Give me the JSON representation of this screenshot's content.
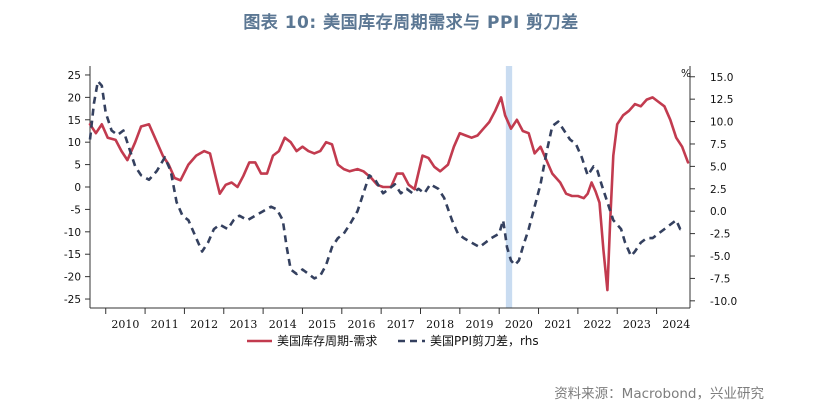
{
  "title": "图表 10: 美国库存周期需求与 PPI 剪刀差",
  "source": "资料来源：Macrobond，兴业研究",
  "chart_data": {
    "type": "line",
    "left_axis": {
      "ticks": [
        25,
        20,
        15,
        10,
        5,
        0,
        -5,
        -10,
        -15,
        -20,
        -25
      ],
      "range": [
        -27,
        27
      ]
    },
    "right_axis": {
      "unit": "%",
      "ticks": [
        "15.0",
        "12.5",
        "10.0",
        "7.5",
        "5.0",
        "2.5",
        "0.0",
        "-2.5",
        "-5.0",
        "-7.5",
        "-10.0"
      ],
      "range": [
        -10.8,
        16.2
      ]
    },
    "x_axis": {
      "labels": [
        "2010",
        "2011",
        "2012",
        "2013",
        "2014",
        "2015",
        "2016",
        "2017",
        "2018",
        "2019",
        "2020",
        "2021",
        "2022",
        "2023",
        "2024"
      ],
      "range": [
        2009.6,
        2024.85
      ]
    },
    "highlight": {
      "start": 2020.17,
      "end": 2020.33,
      "color": "#c9dcf1"
    },
    "series": [
      {
        "name": "美国库存周期-需求",
        "axis": "left",
        "color": "#c23b4f",
        "style": "solid",
        "points": [
          [
            2009.6,
            14
          ],
          [
            2009.75,
            12
          ],
          [
            2009.9,
            14
          ],
          [
            2010.05,
            11
          ],
          [
            2010.25,
            10.5
          ],
          [
            2010.4,
            8
          ],
          [
            2010.55,
            6
          ],
          [
            2010.75,
            10
          ],
          [
            2010.9,
            13.5
          ],
          [
            2011.1,
            14
          ],
          [
            2011.3,
            10
          ],
          [
            2011.45,
            7
          ],
          [
            2011.6,
            5
          ],
          [
            2011.75,
            2
          ],
          [
            2011.9,
            1.5
          ],
          [
            2012.1,
            5
          ],
          [
            2012.3,
            7
          ],
          [
            2012.5,
            8
          ],
          [
            2012.65,
            7.5
          ],
          [
            2012.8,
            2
          ],
          [
            2012.9,
            -1.5
          ],
          [
            2013.05,
            0.5
          ],
          [
            2013.2,
            1
          ],
          [
            2013.35,
            0
          ],
          [
            2013.5,
            2.5
          ],
          [
            2013.65,
            5.5
          ],
          [
            2013.8,
            5.5
          ],
          [
            2013.95,
            3
          ],
          [
            2014.1,
            3
          ],
          [
            2014.25,
            7
          ],
          [
            2014.4,
            8
          ],
          [
            2014.55,
            11
          ],
          [
            2014.7,
            10
          ],
          [
            2014.85,
            8
          ],
          [
            2015.0,
            9
          ],
          [
            2015.15,
            8
          ],
          [
            2015.3,
            7.5
          ],
          [
            2015.45,
            8
          ],
          [
            2015.6,
            10
          ],
          [
            2015.75,
            9.5
          ],
          [
            2015.9,
            5
          ],
          [
            2016.05,
            4
          ],
          [
            2016.2,
            3.5
          ],
          [
            2016.4,
            4
          ],
          [
            2016.55,
            3.5
          ],
          [
            2016.75,
            2
          ],
          [
            2016.9,
            0.5
          ],
          [
            2017.05,
            0
          ],
          [
            2017.25,
            0
          ],
          [
            2017.4,
            3
          ],
          [
            2017.55,
            3
          ],
          [
            2017.7,
            0.5
          ],
          [
            2017.85,
            -0.5
          ],
          [
            2018.05,
            7
          ],
          [
            2018.2,
            6.5
          ],
          [
            2018.35,
            4.5
          ],
          [
            2018.5,
            3.5
          ],
          [
            2018.7,
            5
          ],
          [
            2018.85,
            9
          ],
          [
            2019.0,
            12
          ],
          [
            2019.15,
            11.5
          ],
          [
            2019.3,
            11
          ],
          [
            2019.45,
            11.5
          ],
          [
            2019.6,
            13
          ],
          [
            2019.75,
            14.5
          ],
          [
            2019.9,
            17
          ],
          [
            2020.05,
            20
          ],
          [
            2020.15,
            16
          ],
          [
            2020.3,
            13
          ],
          [
            2020.45,
            15
          ],
          [
            2020.6,
            12.5
          ],
          [
            2020.75,
            12
          ],
          [
            2020.9,
            7.5
          ],
          [
            2021.05,
            9
          ],
          [
            2021.2,
            6
          ],
          [
            2021.35,
            3
          ],
          [
            2021.55,
            1
          ],
          [
            2021.7,
            -1.5
          ],
          [
            2021.85,
            -2
          ],
          [
            2022.0,
            -2
          ],
          [
            2022.15,
            -2.5
          ],
          [
            2022.25,
            -1.5
          ],
          [
            2022.35,
            1
          ],
          [
            2022.45,
            -1
          ],
          [
            2022.55,
            -3.5
          ],
          [
            2022.65,
            -14
          ],
          [
            2022.75,
            -23
          ],
          [
            2022.82,
            -8
          ],
          [
            2022.9,
            7
          ],
          [
            2023.0,
            14
          ],
          [
            2023.15,
            16
          ],
          [
            2023.3,
            17
          ],
          [
            2023.45,
            18.5
          ],
          [
            2023.6,
            18
          ],
          [
            2023.75,
            19.5
          ],
          [
            2023.9,
            20
          ],
          [
            2024.05,
            19
          ],
          [
            2024.2,
            18
          ],
          [
            2024.35,
            15
          ],
          [
            2024.5,
            11
          ],
          [
            2024.65,
            9
          ],
          [
            2024.8,
            5.5
          ]
        ]
      },
      {
        "name": "美国PPI剪刀差，rhs",
        "axis": "right",
        "color": "#34405f",
        "style": "dashed",
        "points": [
          [
            2009.6,
            8
          ],
          [
            2009.7,
            12
          ],
          [
            2009.8,
            14.5
          ],
          [
            2009.9,
            14
          ],
          [
            2010.0,
            11
          ],
          [
            2010.15,
            9
          ],
          [
            2010.3,
            8.5
          ],
          [
            2010.45,
            9
          ],
          [
            2010.6,
            7
          ],
          [
            2010.75,
            5
          ],
          [
            2010.9,
            4
          ],
          [
            2011.1,
            3.5
          ],
          [
            2011.3,
            4.5
          ],
          [
            2011.5,
            6
          ],
          [
            2011.65,
            4.5
          ],
          [
            2011.8,
            1
          ],
          [
            2011.95,
            -0.5
          ],
          [
            2012.1,
            -1
          ],
          [
            2012.3,
            -3
          ],
          [
            2012.45,
            -4.5
          ],
          [
            2012.6,
            -3.5
          ],
          [
            2012.75,
            -2
          ],
          [
            2012.9,
            -1.5
          ],
          [
            2013.1,
            -2
          ],
          [
            2013.25,
            -1
          ],
          [
            2013.4,
            -0.5
          ],
          [
            2013.6,
            -1
          ],
          [
            2013.8,
            -0.5
          ],
          [
            2014.0,
            0
          ],
          [
            2014.2,
            0.5
          ],
          [
            2014.35,
            0.2
          ],
          [
            2014.5,
            -1
          ],
          [
            2014.6,
            -4
          ],
          [
            2014.7,
            -6.5
          ],
          [
            2014.85,
            -7
          ],
          [
            2015.0,
            -6.5
          ],
          [
            2015.15,
            -7
          ],
          [
            2015.3,
            -7.5
          ],
          [
            2015.45,
            -7.2
          ],
          [
            2015.6,
            -6
          ],
          [
            2015.75,
            -4
          ],
          [
            2015.9,
            -3
          ],
          [
            2016.05,
            -2.5
          ],
          [
            2016.2,
            -1.5
          ],
          [
            2016.4,
            0
          ],
          [
            2016.55,
            2
          ],
          [
            2016.7,
            4
          ],
          [
            2016.85,
            3.5
          ],
          [
            2017.05,
            2
          ],
          [
            2017.2,
            2.5
          ],
          [
            2017.35,
            3
          ],
          [
            2017.5,
            2
          ],
          [
            2017.65,
            2.5
          ],
          [
            2017.8,
            2
          ],
          [
            2017.95,
            2.5
          ],
          [
            2018.1,
            2
          ],
          [
            2018.25,
            3
          ],
          [
            2018.45,
            2.5
          ],
          [
            2018.6,
            1.5
          ],
          [
            2018.8,
            -1
          ],
          [
            2018.95,
            -2.5
          ],
          [
            2019.1,
            -3
          ],
          [
            2019.3,
            -3.5
          ],
          [
            2019.5,
            -4
          ],
          [
            2019.65,
            -3.5
          ],
          [
            2019.8,
            -3
          ],
          [
            2020.0,
            -2.5
          ],
          [
            2020.1,
            -1
          ],
          [
            2020.15,
            -2.5
          ],
          [
            2020.2,
            -4
          ],
          [
            2020.3,
            -5.5
          ],
          [
            2020.4,
            -6
          ],
          [
            2020.5,
            -5.5
          ],
          [
            2020.6,
            -4
          ],
          [
            2020.75,
            -2
          ],
          [
            2020.9,
            0.5
          ],
          [
            2021.05,
            3
          ],
          [
            2021.2,
            6.5
          ],
          [
            2021.35,
            9.5
          ],
          [
            2021.5,
            10
          ],
          [
            2021.65,
            9
          ],
          [
            2021.8,
            8
          ],
          [
            2021.95,
            7.5
          ],
          [
            2022.1,
            6
          ],
          [
            2022.25,
            4
          ],
          [
            2022.4,
            5
          ],
          [
            2022.5,
            4.5
          ],
          [
            2022.6,
            3
          ],
          [
            2022.75,
            1
          ],
          [
            2022.9,
            -1
          ],
          [
            2023.0,
            -1.5
          ],
          [
            2023.1,
            -2
          ],
          [
            2023.2,
            -3.5
          ],
          [
            2023.35,
            -5
          ],
          [
            2023.45,
            -4.5
          ],
          [
            2023.6,
            -3.5
          ],
          [
            2023.75,
            -3
          ],
          [
            2023.9,
            -3
          ],
          [
            2024.05,
            -2.5
          ],
          [
            2024.2,
            -2
          ],
          [
            2024.35,
            -1.5
          ],
          [
            2024.5,
            -1
          ],
          [
            2024.6,
            -2
          ],
          [
            2024.7,
            -2
          ]
        ]
      }
    ]
  }
}
